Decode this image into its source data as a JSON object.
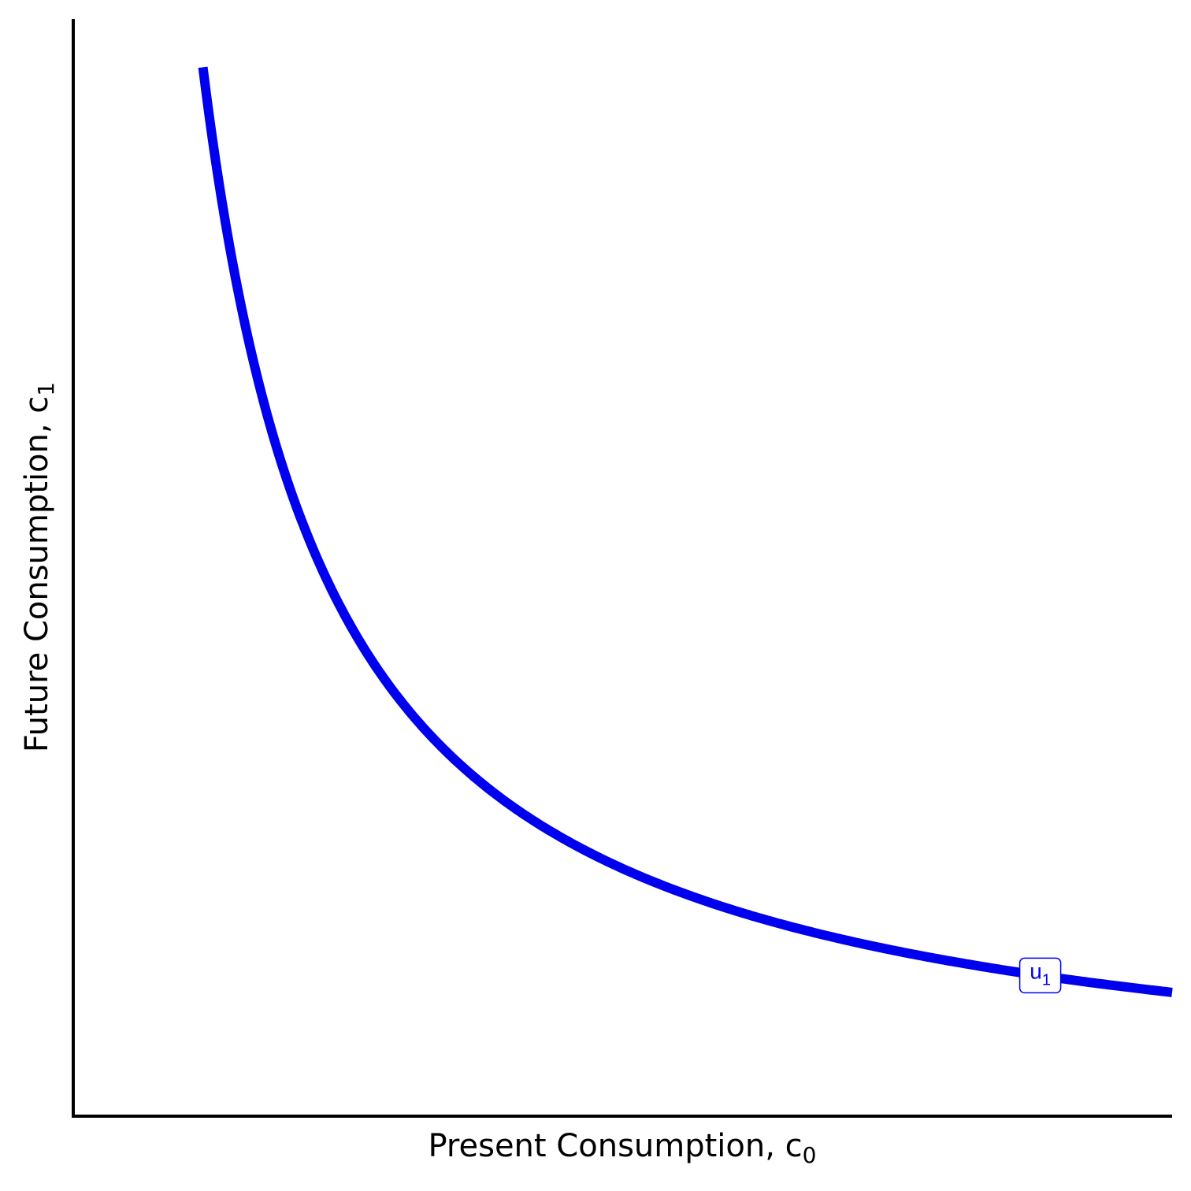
{
  "chart_data": {
    "type": "line",
    "title": "",
    "xlabel": {
      "text": "Present Consumption, c",
      "subscript": "0"
    },
    "ylabel": {
      "text": "Future Consumption, c",
      "subscript": "1"
    },
    "xlim": [
      0,
      10
    ],
    "ylim": [
      0,
      10
    ],
    "grid": false,
    "legend": "none",
    "series": [
      {
        "label": {
          "text": "u",
          "subscript": "1"
        },
        "color": "#0000ee",
        "equation": "y = k / x",
        "k": 11.28,
        "x_range": [
          1.18,
          10
        ],
        "label_x": 8.8
      }
    ]
  }
}
